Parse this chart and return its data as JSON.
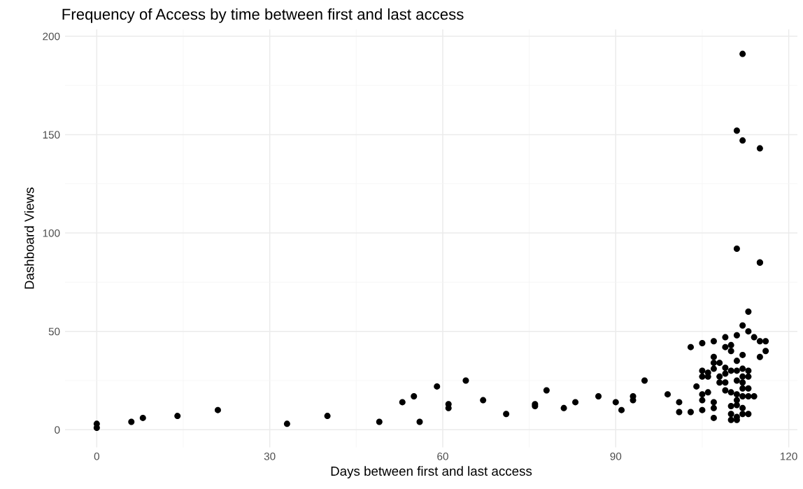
{
  "chart_data": {
    "type": "scatter",
    "title": "Frequency of Access by time between first and last access",
    "xlabel": "Days between first and last access",
    "ylabel": "Dashboard Views",
    "xlim": [
      -5.5,
      121.5
    ],
    "xticks": [
      0,
      30,
      60,
      90,
      120
    ],
    "ylim": [
      -9,
      203.5
    ],
    "yticks": [
      0,
      50,
      100,
      150,
      200
    ],
    "grid": true,
    "marker": "circle",
    "series": [
      {
        "color": "#000000",
        "x": [
          0,
          0,
          6,
          8,
          14,
          21,
          33,
          40,
          49,
          53,
          55,
          56,
          59,
          61,
          61,
          64,
          67,
          71,
          76,
          76,
          78,
          81,
          83,
          87,
          90,
          91,
          93,
          93,
          95,
          99,
          101,
          101,
          103,
          103,
          104,
          105,
          105,
          105,
          105,
          105,
          105,
          106,
          106,
          106,
          107,
          107,
          107,
          107,
          107,
          107,
          107,
          108,
          108,
          108,
          109,
          109,
          109,
          109,
          109,
          109,
          110,
          110,
          110,
          110,
          110,
          110,
          111,
          111,
          111,
          111,
          111,
          111,
          111,
          111,
          111,
          112,
          112,
          112,
          112,
          112,
          112,
          112,
          112,
          112,
          113,
          113,
          113,
          113,
          113,
          113,
          114,
          114,
          115,
          115,
          115,
          116,
          116,
          111,
          112,
          112,
          115,
          111,
          115,
          113,
          110
        ],
        "values": [
          3,
          1,
          4,
          6,
          7,
          10,
          3,
          7,
          4,
          14,
          17,
          4,
          22,
          13,
          11,
          25,
          15,
          8,
          13,
          12,
          20,
          11,
          14,
          17,
          14,
          10,
          17,
          15,
          25,
          18,
          14,
          9,
          9,
          42,
          22,
          44,
          30,
          27,
          18,
          15,
          10,
          29,
          27,
          19,
          45,
          37,
          34,
          31,
          14,
          11,
          6,
          34,
          27,
          24,
          47,
          42,
          31.5,
          28.5,
          24,
          20,
          43,
          40,
          30,
          19,
          12,
          8,
          48,
          35,
          30,
          25,
          18,
          15,
          12.5,
          6.5,
          5,
          53,
          38,
          31,
          27,
          24,
          21,
          17,
          11,
          8,
          50,
          30,
          27,
          21,
          17,
          8,
          47,
          17,
          45,
          37,
          143,
          45,
          40,
          152,
          191,
          147,
          85,
          92,
          85,
          60,
          5
        ]
      }
    ]
  }
}
